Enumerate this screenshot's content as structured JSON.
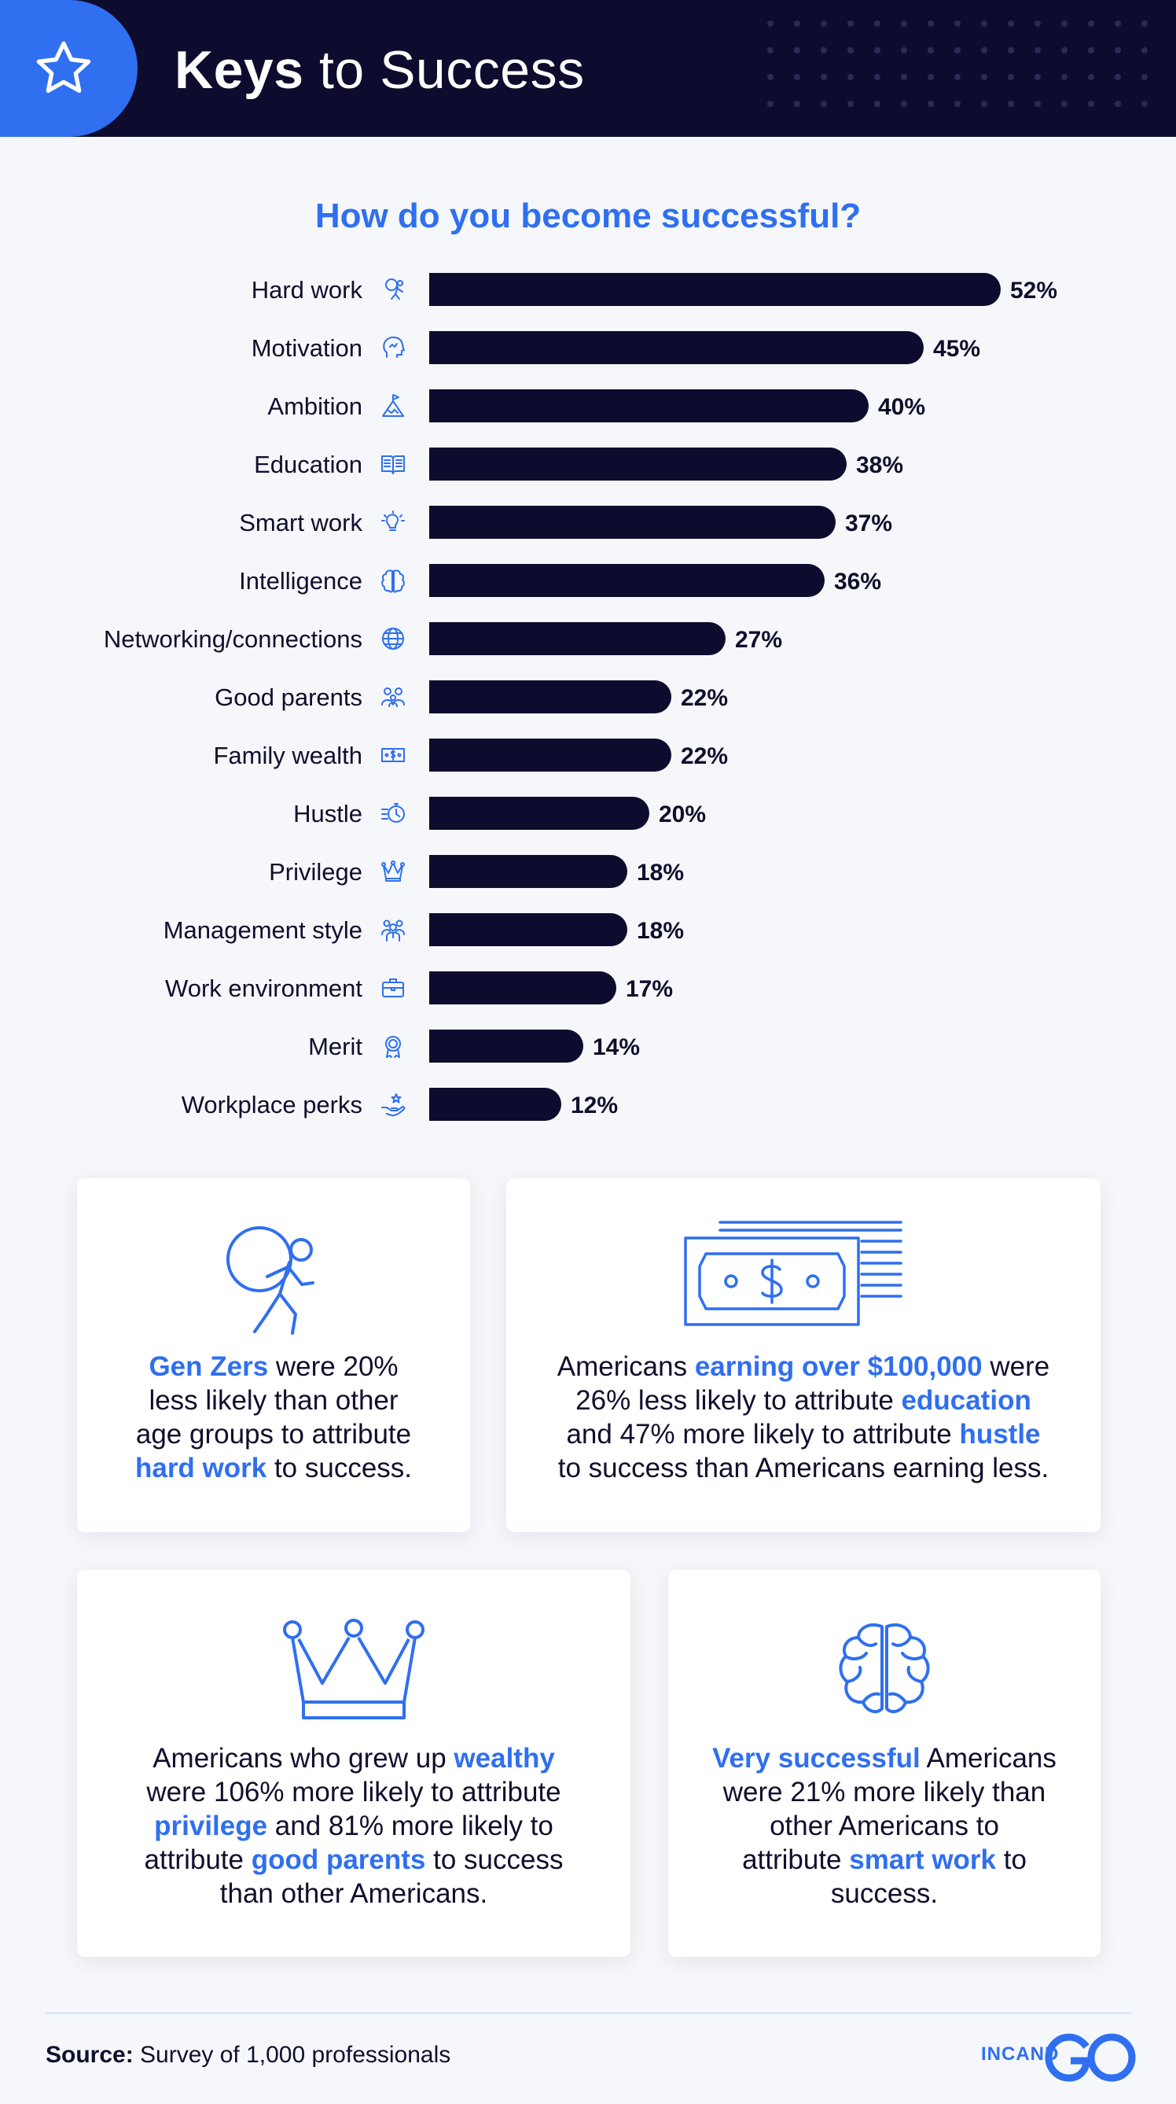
{
  "header": {
    "title_bold": "Keys",
    "title_rest": "to Success",
    "icon": "star-icon"
  },
  "colors": {
    "navy": "#0d0c2e",
    "accent": "#2f6ff0",
    "background": "#f5f7fa"
  },
  "chart_data": {
    "type": "bar",
    "orientation": "horizontal",
    "title": "How do you become successful?",
    "categories": [
      "Hard work",
      "Motivation",
      "Ambition",
      "Education",
      "Smart work",
      "Intelligence",
      "Networking/connections",
      "Good parents",
      "Family wealth",
      "Hustle",
      "Privilege",
      "Management style",
      "Work environment",
      "Merit",
      "Workplace perks"
    ],
    "values": [
      52,
      45,
      40,
      38,
      37,
      36,
      27,
      22,
      22,
      20,
      18,
      18,
      17,
      14,
      12
    ],
    "value_labels": [
      "52%",
      "45%",
      "40%",
      "38%",
      "37%",
      "36%",
      "27%",
      "22%",
      "22%",
      "20%",
      "18%",
      "18%",
      "17%",
      "14%",
      "12%"
    ],
    "icons": [
      "runner-icon",
      "head-icon",
      "mountain-flag-icon",
      "book-icon",
      "lightbulb-icon",
      "brain-icon",
      "globe-icon",
      "family-icon",
      "money-bill-icon",
      "stopwatch-icon",
      "crown-icon",
      "team-icon",
      "briefcase-icon",
      "medal-icon",
      "hand-star-icon"
    ],
    "xlabel": "",
    "ylabel": "",
    "xlim": [
      0,
      52
    ],
    "grid": false,
    "legend": "none"
  },
  "cards": [
    {
      "icon": "person-pushing-ball-icon",
      "segments": [
        {
          "t": "Gen Zers",
          "h": true
        },
        {
          "t": " were 20%\nless likely than other\nage groups to attribute\n",
          "h": false
        },
        {
          "t": "hard work",
          "h": true
        },
        {
          "t": " to success.",
          "h": false
        }
      ]
    },
    {
      "icon": "dollar-bill-icon",
      "segments": [
        {
          "t": "Americans ",
          "h": false
        },
        {
          "t": "earning over $100,000",
          "h": true
        },
        {
          "t": " were\n26% less likely to attribute ",
          "h": false
        },
        {
          "t": "education",
          "h": true
        },
        {
          "t": "\nand 47% more likely to attribute ",
          "h": false
        },
        {
          "t": "hustle",
          "h": true
        },
        {
          "t": "\nto success than Americans earning less.",
          "h": false
        }
      ]
    },
    {
      "icon": "crown-icon",
      "segments": [
        {
          "t": "Americans who grew up ",
          "h": false
        },
        {
          "t": "wealthy",
          "h": true
        },
        {
          "t": "\nwere 106% more likely to attribute\n",
          "h": false
        },
        {
          "t": "privilege",
          "h": true
        },
        {
          "t": " and 81% more likely to\nattribute ",
          "h": false
        },
        {
          "t": "good parents",
          "h": true
        },
        {
          "t": " to success\nthan other Americans.",
          "h": false
        }
      ]
    },
    {
      "icon": "brain-icon",
      "segments": [
        {
          "t": "Very successful",
          "h": true
        },
        {
          "t": " Americans\nwere 21% more likely than\nother Americans to\nattribute ",
          "h": false
        },
        {
          "t": "smart work",
          "h": true
        },
        {
          "t": " to\nsuccess.",
          "h": false
        }
      ]
    }
  ],
  "footer": {
    "source_label": "Source:",
    "source_text": " Survey of 1,000 professionals",
    "logo_text": "INCAND"
  }
}
